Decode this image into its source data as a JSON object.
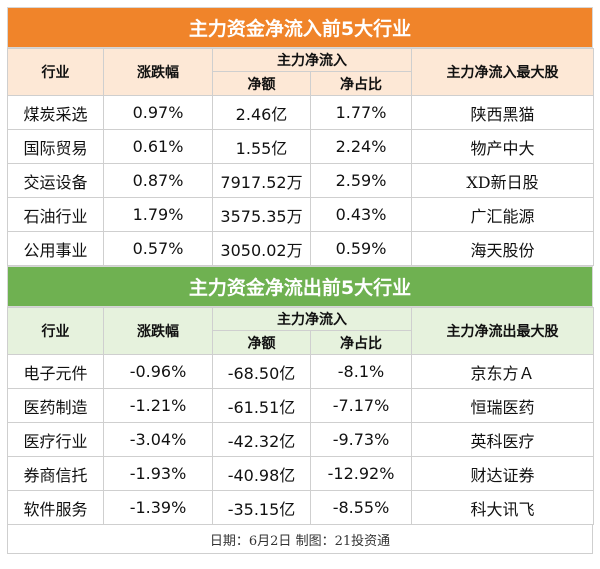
{
  "inflow": {
    "title": "主力资金净流入前5大行业",
    "headers": {
      "industry": "行业",
      "change": "涨跌幅",
      "group": "主力净流入",
      "amount": "净额",
      "ratio": "净占比",
      "top_stock": "主力净流入最大股"
    },
    "rows": [
      {
        "industry": "煤炭采选",
        "change": "0.97%",
        "amount": "2.46亿",
        "ratio": "1.77%",
        "top_stock": "陕西黑猫"
      },
      {
        "industry": "国际贸易",
        "change": "0.61%",
        "amount": "1.55亿",
        "ratio": "2.24%",
        "top_stock": "物产中大"
      },
      {
        "industry": "交运设备",
        "change": "0.87%",
        "amount": "7917.52万",
        "ratio": "2.59%",
        "top_stock": "XD新日股"
      },
      {
        "industry": "石油行业",
        "change": "1.79%",
        "amount": "3575.35万",
        "ratio": "0.43%",
        "top_stock": "广汇能源"
      },
      {
        "industry": "公用事业",
        "change": "0.57%",
        "amount": "3050.02万",
        "ratio": "0.59%",
        "top_stock": "海天股份"
      }
    ]
  },
  "outflow": {
    "title": "主力资金净流出前5大行业",
    "headers": {
      "industry": "行业",
      "change": "涨跌幅",
      "group": "主力净流入",
      "amount": "净额",
      "ratio": "净占比",
      "top_stock": "主力净流出最大股"
    },
    "rows": [
      {
        "industry": "电子元件",
        "change": "-0.96%",
        "amount": "-68.50亿",
        "ratio": "-8.1%",
        "top_stock": "京东方Ａ"
      },
      {
        "industry": "医药制造",
        "change": "-1.21%",
        "amount": "-61.51亿",
        "ratio": "-7.17%",
        "top_stock": "恒瑞医药"
      },
      {
        "industry": "医疗行业",
        "change": "-3.04%",
        "amount": "-42.32亿",
        "ratio": "-9.73%",
        "top_stock": "英科医疗"
      },
      {
        "industry": "券商信托",
        "change": "-1.93%",
        "amount": "-40.98亿",
        "ratio": "-12.92%",
        "top_stock": "财达证券"
      },
      {
        "industry": "软件服务",
        "change": "-1.39%",
        "amount": "-35.15亿",
        "ratio": "-8.55%",
        "top_stock": "科大讯飞"
      }
    ]
  },
  "footer": {
    "text": "日期：6月2日 制图：21投资通"
  },
  "colors": {
    "inflow_banner": "#f0842a",
    "outflow_banner": "#6fb151",
    "inflow_header_bg": "#fde8d6",
    "outflow_header_bg": "#e6f2dd"
  }
}
